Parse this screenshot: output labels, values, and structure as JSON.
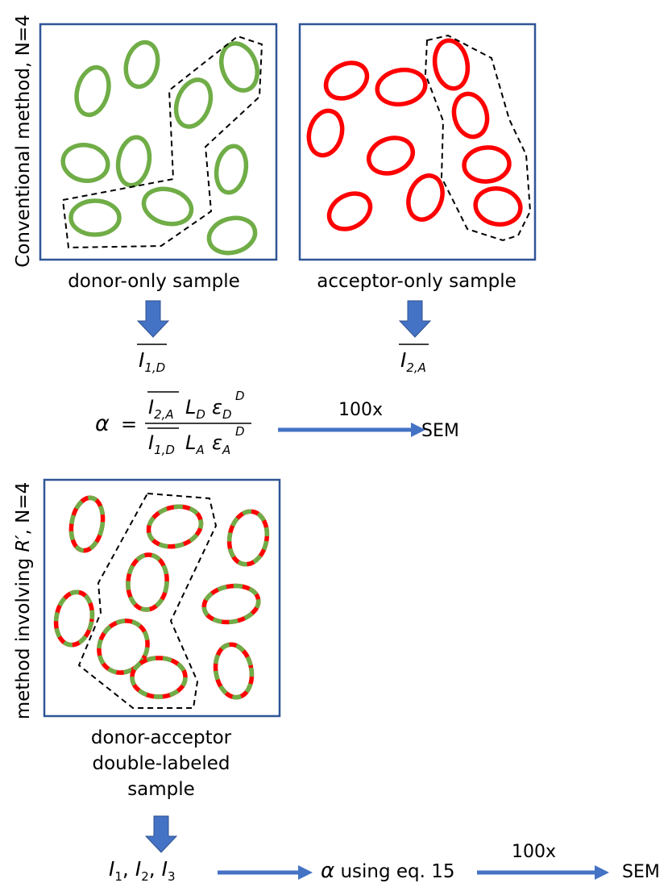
{
  "conventional": {
    "label": "Conventional method, N=4",
    "panels": [
      {
        "caption": "donor-only sample",
        "result": {
          "symbol": "I",
          "subscript": "1,D"
        }
      },
      {
        "caption": "acceptor-only sample",
        "result": {
          "symbol": "I",
          "subscript": "2,A"
        }
      }
    ],
    "formula": {
      "lhs": "α",
      "equals": "=",
      "numerator": [
        {
          "symbol": "I",
          "subscript": "2,A"
        },
        {
          "symbol": "L",
          "subscript": "D"
        },
        {
          "symbol": "ε",
          "subscript": "D",
          "superscript": "D"
        }
      ],
      "denominator": [
        {
          "symbol": "I",
          "subscript": "1,D"
        },
        {
          "symbol": "L",
          "subscript": "A"
        },
        {
          "symbol": "ε",
          "subscript": "A",
          "superscript": "D"
        }
      ]
    },
    "repeat": "100x",
    "result": "SEM"
  },
  "rprime": {
    "label_prefix": "method involving ",
    "label_symbol": "R′",
    "label_suffix": ", N=4",
    "caption_lines": [
      "donor-acceptor",
      "double-labeled",
      "sample"
    ],
    "intensities": [
      {
        "symbol": "I",
        "subscript": "1"
      },
      {
        "symbol": "I",
        "subscript": "2"
      },
      {
        "symbol": "I",
        "subscript": "3"
      }
    ],
    "separators": [
      ", ",
      ", "
    ],
    "step_symbol": "α",
    "step_text": " using eq. 15",
    "repeat": "100x",
    "result": "SEM"
  }
}
